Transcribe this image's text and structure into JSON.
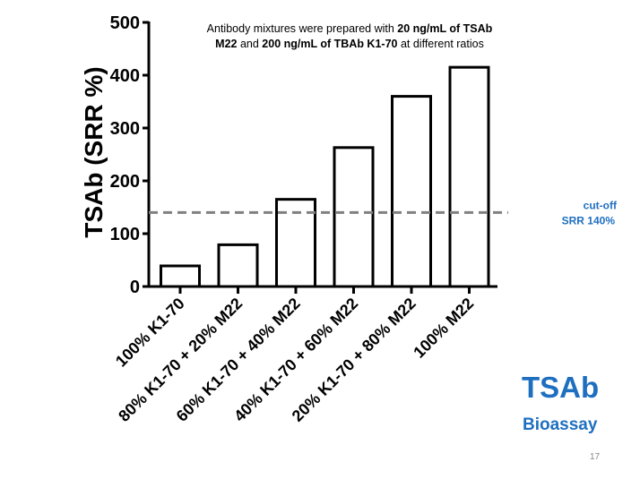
{
  "chart_data": {
    "type": "bar",
    "title": "",
    "annotation_lines": [
      [
        {
          "text": "Antibody mixtures were prepared with ",
          "bold": false
        },
        {
          "text": "20 ng/mL of TSAb",
          "bold": true
        }
      ],
      [
        {
          "text": "M22",
          "bold": true
        },
        {
          "text": " and ",
          "bold": false
        },
        {
          "text": "200 ng/mL of TBAb K1-70",
          "bold": true
        },
        {
          "text": " at different ratios",
          "bold": false
        }
      ]
    ],
    "ylabel": "TSAb (SRR %)",
    "xlabel": "",
    "ylim": [
      0,
      500
    ],
    "yticks": [
      0,
      100,
      200,
      300,
      400,
      500
    ],
    "categories": [
      "100% K1-70",
      "80% K1-70 + 20% M22",
      "60% K1-70 + 40% M22",
      "40% K1-70 + 60% M22",
      "20% K1-70 + 80% M22",
      "100% M22"
    ],
    "values": [
      39,
      79,
      165,
      263,
      360,
      415
    ],
    "bar_fill": "#ffffff",
    "bar_stroke": "#000000",
    "reference_line": {
      "value": 140,
      "label_lines": [
        "cut-off",
        "SRR 140%"
      ],
      "color": "#808080",
      "label_color": "#1f6fc0",
      "style": "dashed"
    },
    "grid": false,
    "legend": "none"
  },
  "slide": {
    "title": "TSAb",
    "subtitle": "Bioassay",
    "page_number": "17",
    "accent_color": "#1f6fc0"
  }
}
